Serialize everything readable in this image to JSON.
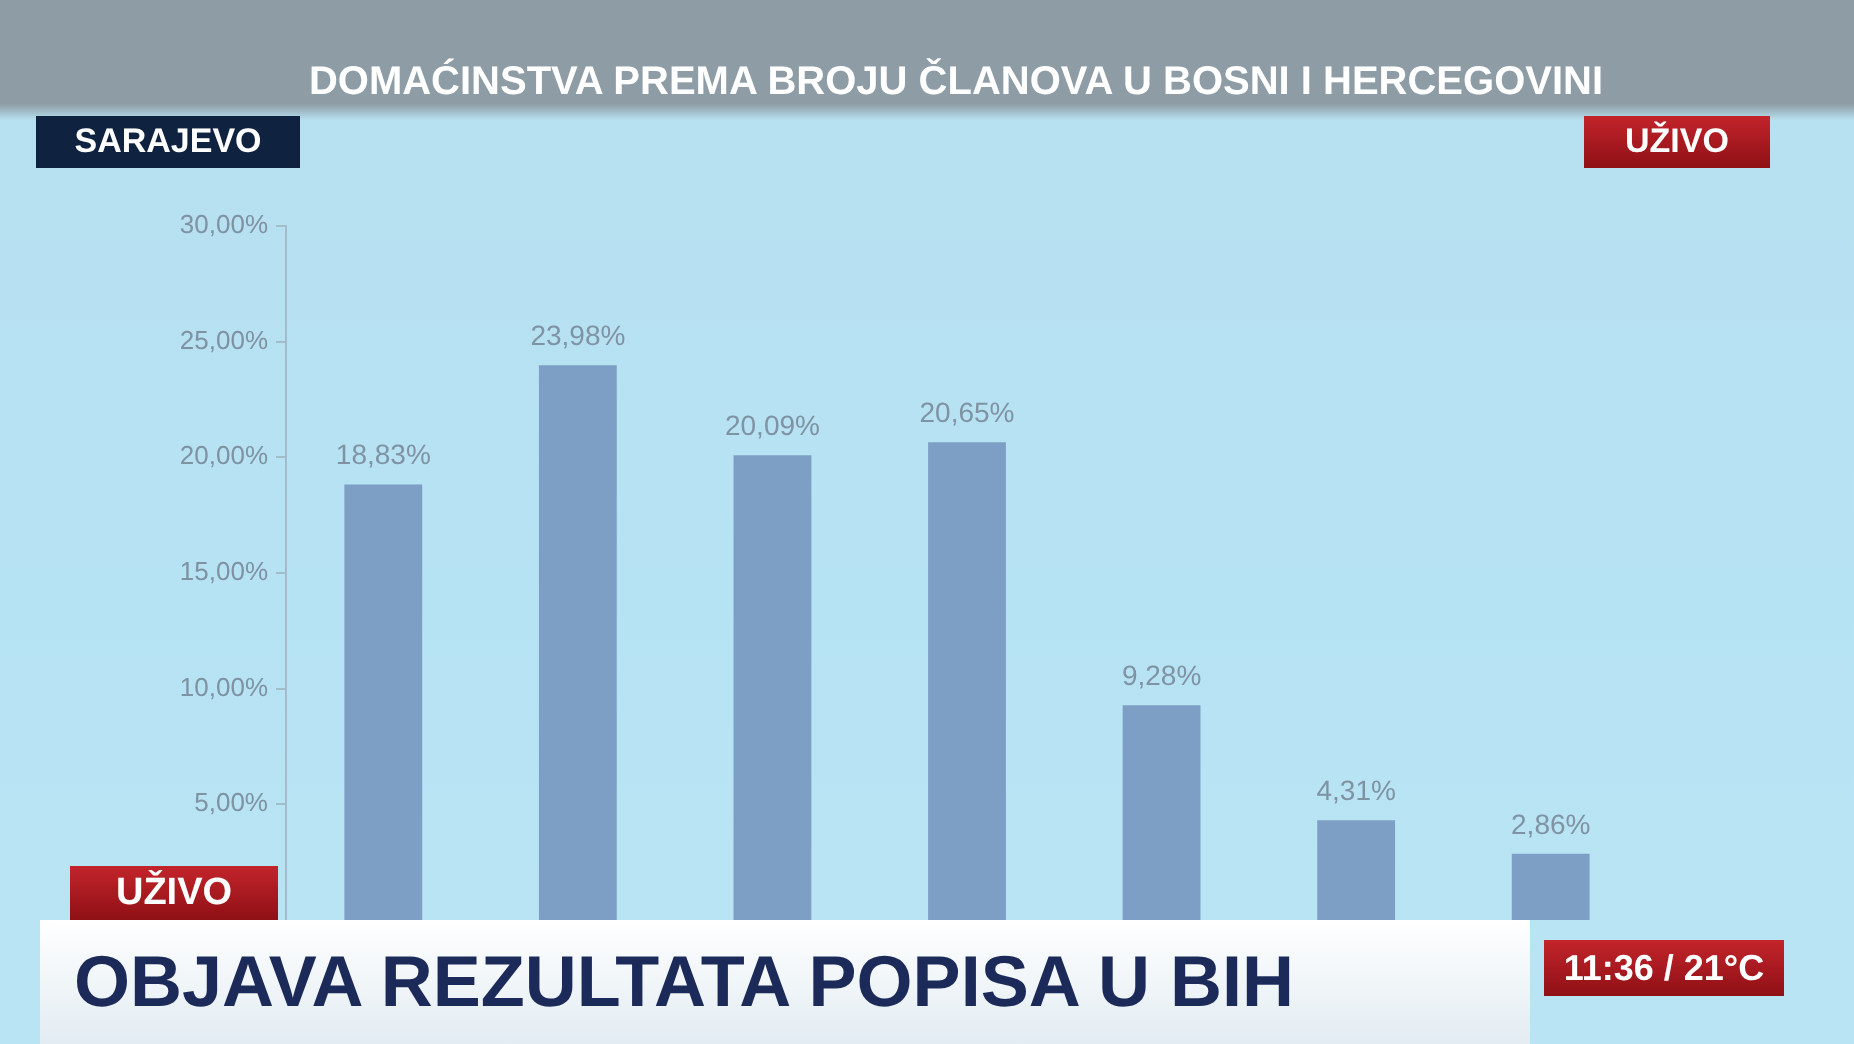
{
  "chart_data": {
    "type": "bar",
    "title": "DOMAĆINSTVA PREMA BROJU ČLANOVA U BOSNI I HERCEGOVINI",
    "categories": [
      null,
      null,
      null,
      null,
      null,
      null,
      null
    ],
    "values": [
      18.83,
      23.98,
      20.09,
      20.65,
      9.28,
      4.31,
      2.86
    ],
    "value_labels": [
      "18,83%",
      "23,98%",
      "20,09%",
      "20,65%",
      "9,28%",
      "4,31%",
      "2,86%"
    ],
    "color": "#7e9fc5",
    "ylim": [
      0,
      30
    ],
    "yticks": [
      {
        "value": 5,
        "label": "5,00%"
      },
      {
        "value": 10,
        "label": "10,00%"
      },
      {
        "value": 15,
        "label": "15,00%"
      },
      {
        "value": 20,
        "label": "20,00%"
      },
      {
        "value": 25,
        "label": "25,00%"
      },
      {
        "value": 30,
        "label": "30,00%"
      }
    ],
    "annotations": [
      "SARAJEVO",
      "UŽIVO",
      "UŽIVO",
      "OBJAVA REZULTATA POPISA U BIH",
      "11:36 / 21°C"
    ]
  }
}
